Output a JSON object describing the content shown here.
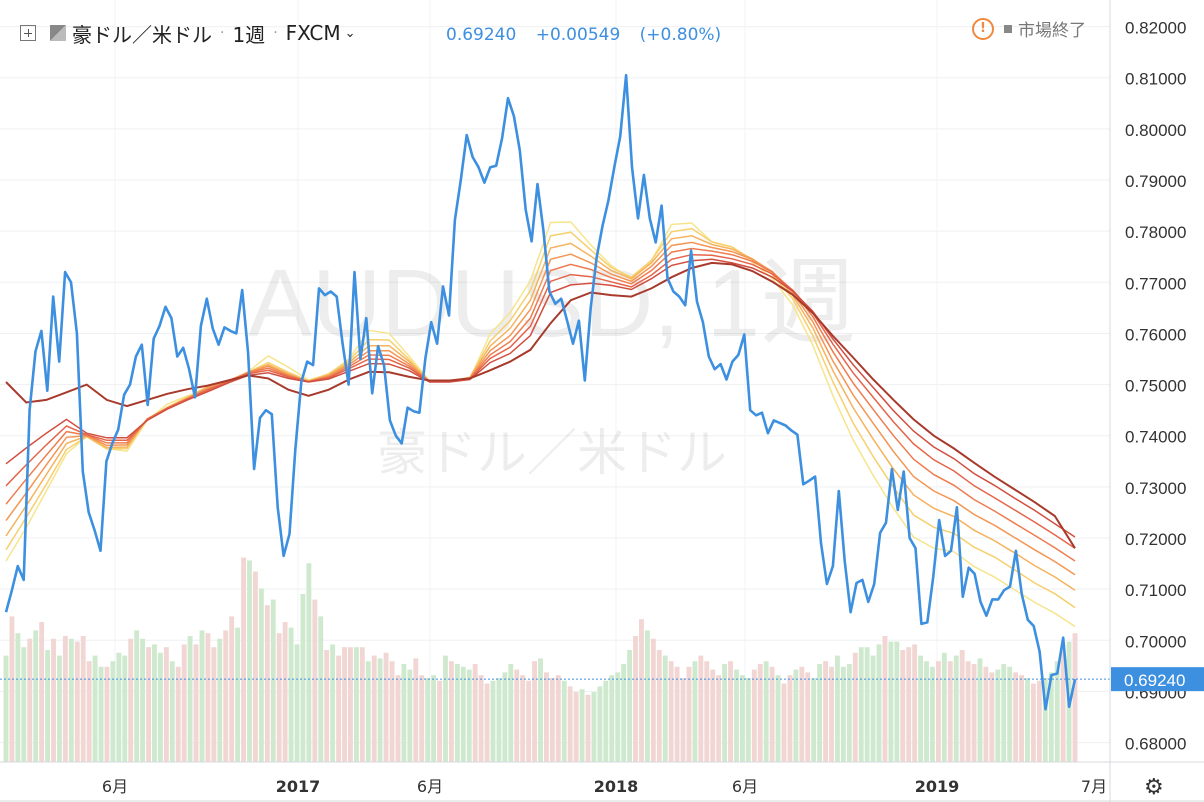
{
  "header": {
    "symbol_name": "豪ドル／米ドル",
    "interval": "1週",
    "exchange": "FXCM",
    "last_price": "0.69240",
    "change": "+0.00549",
    "change_pct": "(+0.80%)",
    "market_status": "市場終了"
  },
  "watermark": {
    "line1": "AUDUSD, 1週",
    "line2": "豪ドル／米ドル"
  },
  "colors": {
    "price": "#3d8fe0",
    "vol_up": "#cfe9cf",
    "vol_down": "#f1d6d3"
  },
  "chart_data": {
    "type": "line",
    "x_labels": [
      "6月",
      "2017",
      "6月",
      "2018",
      "6月",
      "2019",
      "7月"
    ],
    "y_ticks": [
      "0.82000",
      "0.81000",
      "0.80000",
      "0.79000",
      "0.78000",
      "0.77000",
      "0.76000",
      "0.75000",
      "0.74000",
      "0.73000",
      "0.72000",
      "0.71000",
      "0.70000",
      "0.69000",
      "0.68000"
    ],
    "ylim": [
      0.6762,
      0.8252
    ],
    "price_label": "0.69240",
    "series": [
      {
        "values": [
          0.7055,
          0.7098,
          0.7145,
          0.7118,
          0.745,
          0.7565,
          0.7605,
          0.7488,
          0.7672,
          0.7545,
          0.772,
          0.77,
          0.76,
          0.733,
          0.725,
          0.7215,
          0.7175,
          0.735,
          0.7385,
          0.7412,
          0.748,
          0.75,
          0.7555,
          0.7578,
          0.746,
          0.759,
          0.7615,
          0.7652,
          0.763,
          0.7555,
          0.7572,
          0.753,
          0.7475,
          0.7615,
          0.7668,
          0.761,
          0.7578,
          0.7612,
          0.7605,
          0.76,
          0.7685,
          0.7562,
          0.7335,
          0.7435,
          0.745,
          0.7442,
          0.726,
          0.7165,
          0.7208,
          0.7375,
          0.7505,
          0.7545,
          0.7538,
          0.7688,
          0.7675,
          0.7682,
          0.7672,
          0.758,
          0.75,
          0.772,
          0.755,
          0.763,
          0.7483,
          0.7575,
          0.7538,
          0.743,
          0.74,
          0.7385,
          0.7455,
          0.7448,
          0.7445,
          0.755,
          0.7622,
          0.758,
          0.7692,
          0.7635,
          0.7822,
          0.79,
          0.7988,
          0.7945,
          0.7925,
          0.7895,
          0.7925,
          0.7928,
          0.7982,
          0.806,
          0.8025,
          0.7958,
          0.7842,
          0.778,
          0.7892,
          0.78,
          0.7682,
          0.7658,
          0.7668,
          0.7625,
          0.758,
          0.7625,
          0.7508,
          0.765,
          0.7748,
          0.781,
          0.786,
          0.7925,
          0.7985,
          0.8105,
          0.7925,
          0.7825,
          0.791,
          0.7825,
          0.7778,
          0.785,
          0.7708,
          0.7682,
          0.7672,
          0.7655,
          0.7762,
          0.7662,
          0.7622,
          0.7555,
          0.753,
          0.754,
          0.751,
          0.7545,
          0.7558,
          0.7598,
          0.745,
          0.744,
          0.7445,
          0.7405,
          0.743,
          0.7425,
          0.742,
          0.741,
          0.7402,
          0.7305,
          0.7312,
          0.732,
          0.719,
          0.711,
          0.7145,
          0.7292,
          0.7155,
          0.7055,
          0.7112,
          0.7118,
          0.7075,
          0.711,
          0.721,
          0.723,
          0.7335,
          0.7255,
          0.733,
          0.72,
          0.718,
          0.7032,
          0.7035,
          0.7125,
          0.7235,
          0.7165,
          0.7175,
          0.726,
          0.7085,
          0.7142,
          0.713,
          0.7075,
          0.7048,
          0.708,
          0.708,
          0.7098,
          0.7105,
          0.7175,
          0.709,
          0.704,
          0.7028,
          0.6978,
          0.6865,
          0.6932,
          0.6935,
          0.7005,
          0.687,
          0.6924
        ]
      }
    ],
    "ribbon": {
      "colors": [
        "#f6e58d",
        "#f7cf6c",
        "#f6b25c",
        "#f39654",
        "#ee7c4f",
        "#e4654a",
        "#d24f40",
        "#a83a2c"
      ],
      "values": [
        [
          0.7155,
          0.722,
          0.7292,
          0.7365,
          0.7398,
          0.7375,
          0.737,
          0.743,
          0.7462,
          0.7478,
          0.7489,
          0.7503,
          0.7525,
          0.7556,
          0.7534,
          0.7509,
          0.752,
          0.755,
          0.7606,
          0.76,
          0.7555,
          0.7507,
          0.7507,
          0.7511,
          0.7599,
          0.7641,
          0.7703,
          0.7817,
          0.7818,
          0.7773,
          0.7733,
          0.7705,
          0.7742,
          0.7813,
          0.7816,
          0.7779,
          0.7769,
          0.7739,
          0.7707,
          0.7656,
          0.7577,
          0.7478,
          0.7392,
          0.7322,
          0.7258,
          0.7202,
          0.718,
          0.7173,
          0.7144,
          0.7124,
          0.7099,
          0.7074,
          0.7053,
          0.7027
        ],
        [
          0.7177,
          0.724,
          0.7305,
          0.7373,
          0.7398,
          0.7374,
          0.7375,
          0.7432,
          0.7456,
          0.7476,
          0.7496,
          0.7507,
          0.7524,
          0.7543,
          0.7524,
          0.7507,
          0.7521,
          0.7547,
          0.7588,
          0.7587,
          0.7549,
          0.7506,
          0.7507,
          0.7514,
          0.7585,
          0.7625,
          0.7684,
          0.7791,
          0.7798,
          0.7763,
          0.7729,
          0.771,
          0.7743,
          0.7799,
          0.7805,
          0.7779,
          0.7769,
          0.7744,
          0.7715,
          0.7668,
          0.7596,
          0.7505,
          0.7425,
          0.7359,
          0.7299,
          0.7245,
          0.7221,
          0.7209,
          0.7182,
          0.7163,
          0.7138,
          0.7112,
          0.7091,
          0.7064
        ],
        [
          0.7204,
          0.7263,
          0.7324,
          0.7385,
          0.7399,
          0.7377,
          0.7378,
          0.7433,
          0.7454,
          0.7474,
          0.7495,
          0.7507,
          0.7524,
          0.7539,
          0.7521,
          0.7506,
          0.7519,
          0.7543,
          0.7576,
          0.7576,
          0.7545,
          0.7506,
          0.7506,
          0.7514,
          0.7575,
          0.761,
          0.7665,
          0.7767,
          0.7776,
          0.7751,
          0.7723,
          0.7707,
          0.7738,
          0.7785,
          0.7791,
          0.7774,
          0.7765,
          0.7746,
          0.7719,
          0.7675,
          0.7611,
          0.7527,
          0.7455,
          0.7393,
          0.7335,
          0.7284,
          0.7258,
          0.7242,
          0.7215,
          0.7195,
          0.7171,
          0.7146,
          0.7124,
          0.7098
        ],
        [
          0.7234,
          0.7288,
          0.7343,
          0.7397,
          0.74,
          0.7381,
          0.7382,
          0.7433,
          0.7454,
          0.7473,
          0.7493,
          0.7506,
          0.7524,
          0.7536,
          0.7519,
          0.7506,
          0.7517,
          0.7539,
          0.7566,
          0.7566,
          0.754,
          0.7506,
          0.7506,
          0.7513,
          0.7566,
          0.7596,
          0.7647,
          0.7745,
          0.7755,
          0.7738,
          0.7716,
          0.7702,
          0.7731,
          0.7772,
          0.7778,
          0.7768,
          0.776,
          0.7745,
          0.7721,
          0.768,
          0.7623,
          0.7546,
          0.748,
          0.7424,
          0.7369,
          0.732,
          0.7292,
          0.7273,
          0.7246,
          0.7225,
          0.7201,
          0.7177,
          0.7154,
          0.7128
        ],
        [
          0.7266,
          0.7315,
          0.7362,
          0.7408,
          0.7401,
          0.7386,
          0.7386,
          0.7432,
          0.7454,
          0.7472,
          0.7491,
          0.7506,
          0.7523,
          0.7532,
          0.7517,
          0.7506,
          0.7515,
          0.7535,
          0.7558,
          0.7557,
          0.7536,
          0.7506,
          0.7506,
          0.7512,
          0.7558,
          0.7584,
          0.763,
          0.7723,
          0.7735,
          0.7725,
          0.7709,
          0.7697,
          0.7723,
          0.7759,
          0.7766,
          0.7761,
          0.7754,
          0.7741,
          0.772,
          0.7684,
          0.7633,
          0.7564,
          0.7503,
          0.7451,
          0.74,
          0.7354,
          0.7324,
          0.7303,
          0.7275,
          0.7253,
          0.7229,
          0.7205,
          0.7181,
          0.7155
        ],
        [
          0.7302,
          0.7343,
          0.7382,
          0.7419,
          0.7402,
          0.7391,
          0.7391,
          0.7431,
          0.7454,
          0.7472,
          0.7489,
          0.7505,
          0.7521,
          0.7528,
          0.7515,
          0.7506,
          0.7513,
          0.7531,
          0.755,
          0.7549,
          0.7532,
          0.7506,
          0.7506,
          0.7511,
          0.7551,
          0.7573,
          0.7614,
          0.7702,
          0.7715,
          0.7711,
          0.7701,
          0.7691,
          0.7714,
          0.7745,
          0.7754,
          0.7753,
          0.7746,
          0.7735,
          0.7716,
          0.7685,
          0.764,
          0.7579,
          0.7523,
          0.7475,
          0.7427,
          0.7384,
          0.7353,
          0.7331,
          0.7302,
          0.7279,
          0.7255,
          0.7231,
          0.7206,
          0.718
        ],
        [
          0.7345,
          0.7376,
          0.7405,
          0.7432,
          0.7405,
          0.7396,
          0.7396,
          0.743,
          0.7452,
          0.747,
          0.7486,
          0.7503,
          0.7518,
          0.7523,
          0.7512,
          0.7505,
          0.7511,
          0.7526,
          0.7541,
          0.754,
          0.7527,
          0.7505,
          0.7505,
          0.751,
          0.7543,
          0.7561,
          0.7596,
          0.768,
          0.7695,
          0.7698,
          0.7694,
          0.7686,
          0.7707,
          0.7733,
          0.7742,
          0.7745,
          0.7738,
          0.7728,
          0.771,
          0.7683,
          0.7643,
          0.7589,
          0.7539,
          0.7494,
          0.7449,
          0.7409,
          0.7378,
          0.7355,
          0.7326,
          0.7303,
          0.7278,
          0.7254,
          0.7228,
          0.7202
        ],
        [
          0.7505,
          0.7465,
          0.747,
          0.7485,
          0.75,
          0.747,
          0.7458,
          0.747,
          0.7482,
          0.7491,
          0.7498,
          0.7508,
          0.7518,
          0.7512,
          0.749,
          0.7478,
          0.749,
          0.751,
          0.7525,
          0.7524,
          0.7515,
          0.7508,
          0.7508,
          0.7512,
          0.7528,
          0.7545,
          0.7568,
          0.762,
          0.7665,
          0.768,
          0.7675,
          0.7672,
          0.7688,
          0.771,
          0.7728,
          0.7738,
          0.7735,
          0.7722,
          0.7701,
          0.7676,
          0.764,
          0.7595,
          0.7553,
          0.751,
          0.747,
          0.7432,
          0.74,
          0.7375,
          0.7347,
          0.732,
          0.7295,
          0.727,
          0.7243,
          0.718
        ]
      ]
    },
    "volume": {
      "ylim": [
        0,
        1.0
      ],
      "values": [
        0.38,
        0.52,
        0.46,
        0.41,
        0.44,
        0.47,
        0.5,
        0.4,
        0.44,
        0.38,
        0.45,
        0.44,
        0.43,
        0.45,
        0.36,
        0.38,
        0.34,
        0.34,
        0.36,
        0.39,
        0.38,
        0.44,
        0.47,
        0.44,
        0.41,
        0.42,
        0.39,
        0.41,
        0.36,
        0.34,
        0.42,
        0.45,
        0.42,
        0.47,
        0.46,
        0.41,
        0.44,
        0.47,
        0.52,
        0.48,
        0.73,
        0.72,
        0.68,
        0.62,
        0.56,
        0.58,
        0.46,
        0.5,
        0.48,
        0.42,
        0.6,
        0.71,
        0.58,
        0.52,
        0.4,
        0.42,
        0.38,
        0.41,
        0.41,
        0.41,
        0.41,
        0.36,
        0.38,
        0.37,
        0.39,
        0.36,
        0.31,
        0.35,
        0.33,
        0.37,
        0.31,
        0.3,
        0.31,
        0.29,
        0.38,
        0.36,
        0.35,
        0.34,
        0.33,
        0.35,
        0.31,
        0.28,
        0.29,
        0.3,
        0.32,
        0.35,
        0.33,
        0.31,
        0.29,
        0.36,
        0.37,
        0.32,
        0.3,
        0.31,
        0.29,
        0.27,
        0.25,
        0.26,
        0.24,
        0.25,
        0.27,
        0.29,
        0.31,
        0.32,
        0.35,
        0.4,
        0.45,
        0.51,
        0.47,
        0.44,
        0.4,
        0.38,
        0.36,
        0.34,
        0.3,
        0.34,
        0.36,
        0.38,
        0.36,
        0.33,
        0.31,
        0.35,
        0.36,
        0.33,
        0.31,
        0.3,
        0.33,
        0.35,
        0.36,
        0.34,
        0.31,
        0.28,
        0.31,
        0.33,
        0.34,
        0.32,
        0.3,
        0.35,
        0.36,
        0.34,
        0.38,
        0.34,
        0.35,
        0.39,
        0.41,
        0.41,
        0.38,
        0.42,
        0.45,
        0.43,
        0.43,
        0.4,
        0.41,
        0.42,
        0.38,
        0.36,
        0.34,
        0.36,
        0.39,
        0.36,
        0.38,
        0.4,
        0.36,
        0.35,
        0.37,
        0.34,
        0.32,
        0.33,
        0.35,
        0.34,
        0.32,
        0.31,
        0.3,
        0.28,
        0.29,
        0.3,
        0.32,
        0.36,
        0.4,
        0.43,
        0.46
      ],
      "up": [
        1,
        0,
        1,
        1,
        0,
        1,
        0,
        1,
        0,
        1,
        0,
        1,
        0,
        0,
        0,
        1,
        1,
        0,
        1,
        1,
        1,
        0,
        1,
        1,
        0,
        1,
        1,
        0,
        1,
        0,
        0,
        1,
        0,
        1,
        0,
        0,
        1,
        0,
        0,
        1,
        0,
        1,
        0,
        1,
        0,
        1,
        0,
        0,
        1,
        1,
        1,
        1,
        0,
        1,
        0,
        1,
        0,
        0,
        0,
        1,
        0,
        1,
        0,
        1,
        0,
        0,
        0,
        1,
        1,
        0,
        0,
        1,
        1,
        0,
        1,
        0,
        1,
        1,
        1,
        0,
        0,
        0,
        1,
        1,
        1,
        1,
        0,
        0,
        0,
        0,
        1,
        0,
        0,
        0,
        1,
        0,
        0,
        1,
        0,
        1,
        1,
        1,
        1,
        1,
        1,
        1,
        0,
        0,
        1,
        0,
        0,
        1,
        0,
        0,
        0,
        0,
        1,
        0,
        0,
        0,
        0,
        1,
        0,
        1,
        1,
        1,
        0,
        0,
        1,
        0,
        1,
        0,
        0,
        1,
        0,
        0,
        1,
        1,
        0,
        0,
        1,
        1,
        1,
        0,
        1,
        1,
        1,
        1,
        0,
        1,
        1,
        0,
        0,
        0,
        1,
        1,
        1,
        0,
        1,
        0,
        1,
        0,
        0,
        0,
        1,
        0,
        0,
        1,
        1,
        1,
        0,
        0,
        1,
        0,
        0,
        1,
        1,
        1,
        0,
        1,
        0,
        0,
        1,
        0,
        1
      ]
    }
  }
}
